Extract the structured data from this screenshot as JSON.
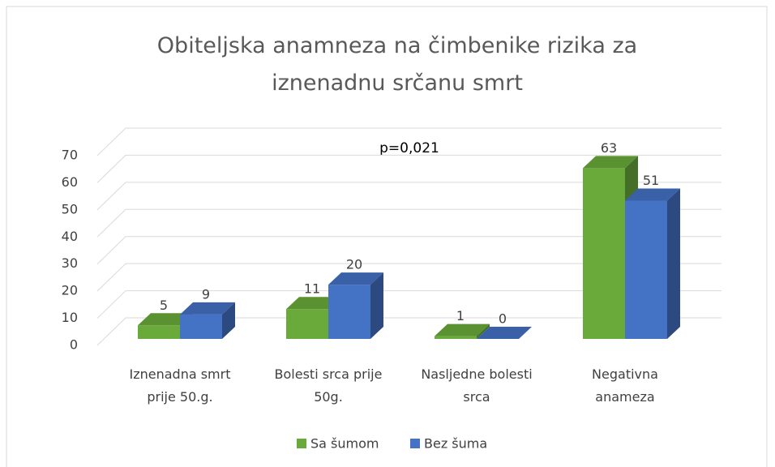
{
  "chart_data": {
    "type": "bar3d",
    "title": "Obiteljska anamneza na čimbenike rizika za iznenadnu srčanu smrt",
    "annotation": "p=0,021",
    "categories": [
      "Iznenadna smrt prije 50.g.",
      "Bolesti srca prije 50g.",
      "Nasljedne bolesti srca",
      "Negativna anameza"
    ],
    "series": [
      {
        "name": "Sa šumom",
        "color": "#6aaa3a",
        "values": [
          5,
          11,
          1,
          63
        ]
      },
      {
        "name": "Bez šuma",
        "color": "#4472c4",
        "values": [
          9,
          20,
          0,
          51
        ]
      }
    ],
    "ylim": [
      0,
      70
    ],
    "yticks": [
      0,
      10,
      20,
      30,
      40,
      50,
      60,
      70
    ],
    "grid": true,
    "legend": "bottom"
  }
}
